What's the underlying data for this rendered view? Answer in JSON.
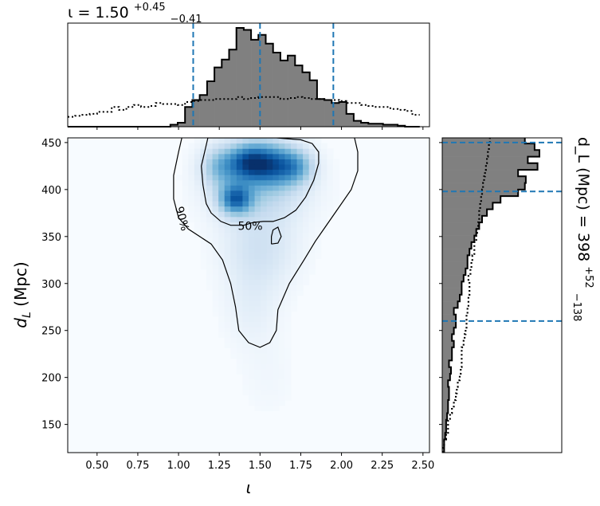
{
  "chart_data": [
    {
      "id": "joint",
      "type": "heatmap",
      "title": "",
      "xlabel": "ι",
      "ylabel": "d_L (Mpc)",
      "xlim": [
        0.32,
        2.54
      ],
      "ylim": [
        120,
        455
      ],
      "xticks": [
        0.5,
        0.75,
        1.0,
        1.25,
        1.5,
        1.75,
        2.0,
        2.25,
        2.5
      ],
      "xtick_labels": [
        "0.50",
        "0.75",
        "1.00",
        "1.25",
        "1.50",
        "1.75",
        "2.00",
        "2.25",
        "2.50"
      ],
      "yticks": [
        150,
        200,
        250,
        300,
        350,
        400,
        450
      ],
      "ytick_labels": [
        "150",
        "200",
        "250",
        "300",
        "350",
        "400",
        "450"
      ],
      "colormap": "Blues",
      "blobs": [
        {
          "x": 1.43,
          "y": 430,
          "sx": 0.09,
          "sy": 14,
          "w": 1.0
        },
        {
          "x": 1.35,
          "y": 390,
          "sx": 0.07,
          "sy": 11,
          "w": 0.95
        },
        {
          "x": 1.58,
          "y": 428,
          "sx": 0.09,
          "sy": 16,
          "w": 0.72
        },
        {
          "x": 1.72,
          "y": 425,
          "sx": 0.08,
          "sy": 13,
          "w": 0.62
        },
        {
          "x": 1.25,
          "y": 425,
          "sx": 0.08,
          "sy": 15,
          "w": 0.5
        },
        {
          "x": 1.5,
          "y": 405,
          "sx": 0.2,
          "sy": 28,
          "w": 0.45
        },
        {
          "x": 1.5,
          "y": 335,
          "sx": 0.16,
          "sy": 28,
          "w": 0.26
        },
        {
          "x": 1.45,
          "y": 275,
          "sx": 0.12,
          "sy": 30,
          "w": 0.13
        },
        {
          "x": 1.55,
          "y": 200,
          "sx": 0.12,
          "sy": 30,
          "w": 0.05
        }
      ],
      "contours": [
        {
          "label": "90%",
          "label_pos": [
            1.0,
            368
          ],
          "label_rotation": 75,
          "points": [
            [
              1.02,
              455
            ],
            [
              1.0,
              440
            ],
            [
              0.97,
              415
            ],
            [
              0.97,
              390
            ],
            [
              1.0,
              370
            ],
            [
              1.06,
              358
            ],
            [
              1.13,
              350
            ],
            [
              1.2,
              342
            ],
            [
              1.27,
              325
            ],
            [
              1.32,
              300
            ],
            [
              1.35,
              275
            ],
            [
              1.37,
              250
            ],
            [
              1.43,
              237
            ],
            [
              1.5,
              232
            ],
            [
              1.56,
              237
            ],
            [
              1.6,
              250
            ],
            [
              1.61,
              272
            ],
            [
              1.68,
              300
            ],
            [
              1.77,
              325
            ],
            [
              1.84,
              345
            ],
            [
              1.9,
              360
            ],
            [
              1.98,
              380
            ],
            [
              2.06,
              400
            ],
            [
              2.1,
              420
            ],
            [
              2.1,
              440
            ],
            [
              2.08,
              455
            ]
          ]
        },
        {
          "label": "50%",
          "label_pos": [
            1.44,
            357
          ],
          "label_rotation": 0,
          "points": [
            [
              1.18,
              455
            ],
            [
              1.16,
              440
            ],
            [
              1.14,
              425
            ],
            [
              1.15,
              405
            ],
            [
              1.17,
              385
            ],
            [
              1.2,
              375
            ],
            [
              1.26,
              366
            ],
            [
              1.32,
              362
            ],
            [
              1.4,
              362
            ],
            [
              1.46,
              365
            ],
            [
              1.52,
              366
            ],
            [
              1.58,
              366
            ],
            [
              1.65,
              370
            ],
            [
              1.72,
              378
            ],
            [
              1.78,
              392
            ],
            [
              1.83,
              410
            ],
            [
              1.86,
              428
            ],
            [
              1.86,
              440
            ],
            [
              1.82,
              449
            ],
            [
              1.75,
              453
            ],
            [
              1.6,
              455
            ],
            [
              1.45,
              455
            ],
            [
              1.3,
              455
            ],
            [
              1.18,
              455
            ]
          ],
          "island": [
            [
              1.57,
              342
            ],
            [
              1.61,
              343
            ],
            [
              1.63,
              350
            ],
            [
              1.61,
              360
            ],
            [
              1.58,
              357
            ],
            [
              1.57,
              350
            ],
            [
              1.57,
              342
            ]
          ]
        }
      ]
    },
    {
      "id": "iota-marginal",
      "type": "bar",
      "title": "ι = 1.50",
      "title_sup": "+0.45",
      "title_sub": "−0.41",
      "bin_edges": [
        0.32,
        0.365,
        0.41,
        0.455,
        0.5,
        0.545,
        0.59,
        0.635,
        0.68,
        0.725,
        0.77,
        0.815,
        0.86,
        0.905,
        0.95,
        0.995,
        1.04,
        1.085,
        1.13,
        1.175,
        1.22,
        1.265,
        1.31,
        1.355,
        1.4,
        1.445,
        1.49,
        1.535,
        1.58,
        1.625,
        1.67,
        1.715,
        1.76,
        1.805,
        1.85,
        1.895,
        1.94,
        1.985,
        2.03,
        2.075,
        2.12,
        2.165,
        2.21,
        2.255,
        2.3,
        2.345,
        2.39,
        2.435,
        2.48
      ],
      "posterior": [
        0,
        0,
        0,
        0,
        0,
        0,
        0,
        0,
        0,
        0,
        0,
        0,
        0,
        0,
        0.02,
        0.04,
        0.2,
        0.27,
        0.32,
        0.46,
        0.6,
        0.68,
        0.78,
        1.0,
        0.98,
        0.88,
        0.93,
        0.84,
        0.75,
        0.67,
        0.72,
        0.62,
        0.55,
        0.47,
        0.28,
        0.27,
        0.24,
        0.25,
        0.13,
        0.06,
        0.04,
        0.03,
        0.03,
        0.02,
        0.02,
        0.01,
        0.0,
        0.0
      ],
      "prior": [
        0.1,
        0.11,
        0.12,
        0.13,
        0.15,
        0.15,
        0.2,
        0.17,
        0.2,
        0.22,
        0.2,
        0.21,
        0.24,
        0.23,
        0.23,
        0.22,
        0.25,
        0.26,
        0.27,
        0.27,
        0.28,
        0.28,
        0.28,
        0.3,
        0.28,
        0.29,
        0.3,
        0.3,
        0.3,
        0.28,
        0.29,
        0.3,
        0.29,
        0.28,
        0.28,
        0.27,
        0.27,
        0.26,
        0.24,
        0.24,
        0.22,
        0.21,
        0.2,
        0.2,
        0.18,
        0.17,
        0.16,
        0.12
      ],
      "quantiles": [
        1.09,
        1.5,
        1.95
      ],
      "ymax": 1.0
    },
    {
      "id": "dl-marginal",
      "type": "bar",
      "title": "d_L (Mpc) = 398",
      "title_sup": "+52",
      "title_sub": "−138",
      "bin_edges": [
        120,
        127,
        134,
        141,
        148,
        155,
        162,
        169,
        176,
        183,
        190,
        197,
        204,
        211,
        218,
        225,
        232,
        239,
        246,
        253,
        260,
        267,
        274,
        281,
        288,
        295,
        302,
        309,
        316,
        323,
        330,
        337,
        344,
        351,
        358,
        365,
        372,
        379,
        386,
        393,
        400,
        407,
        414,
        421,
        428,
        435,
        442,
        449,
        455
      ],
      "posterior": [
        0.02,
        0.02,
        0.03,
        0.04,
        0.04,
        0.05,
        0.06,
        0.06,
        0.07,
        0.07,
        0.06,
        0.08,
        0.09,
        0.07,
        0.1,
        0.1,
        0.12,
        0.1,
        0.12,
        0.14,
        0.14,
        0.12,
        0.16,
        0.18,
        0.2,
        0.2,
        0.22,
        0.24,
        0.26,
        0.26,
        0.28,
        0.3,
        0.33,
        0.35,
        0.38,
        0.41,
        0.46,
        0.52,
        0.6,
        0.78,
        0.85,
        0.86,
        0.78,
        0.98,
        0.88,
        1.0,
        0.95,
        0.85
      ],
      "prior": [
        0.01,
        0.02,
        0.04,
        0.06,
        0.06,
        0.08,
        0.1,
        0.12,
        0.14,
        0.15,
        0.16,
        0.18,
        0.19,
        0.2,
        0.2,
        0.2,
        0.22,
        0.23,
        0.24,
        0.25,
        0.25,
        0.26,
        0.27,
        0.27,
        0.28,
        0.28,
        0.27,
        0.29,
        0.3,
        0.31,
        0.33,
        0.33,
        0.35,
        0.36,
        0.37,
        0.38,
        0.38,
        0.39,
        0.4,
        0.41,
        0.42,
        0.43,
        0.44,
        0.45,
        0.46,
        0.47,
        0.48,
        0.49
      ],
      "quantiles": [
        260,
        398,
        450
      ],
      "xmax": 1.0
    }
  ],
  "colors": {
    "posterior_fill": "#808080",
    "posterior_edge": "#000000",
    "quantile_line": "#1f77b4",
    "contour": "#000000",
    "heat_low": "#f7fbff",
    "heat_high": "#08306b"
  }
}
